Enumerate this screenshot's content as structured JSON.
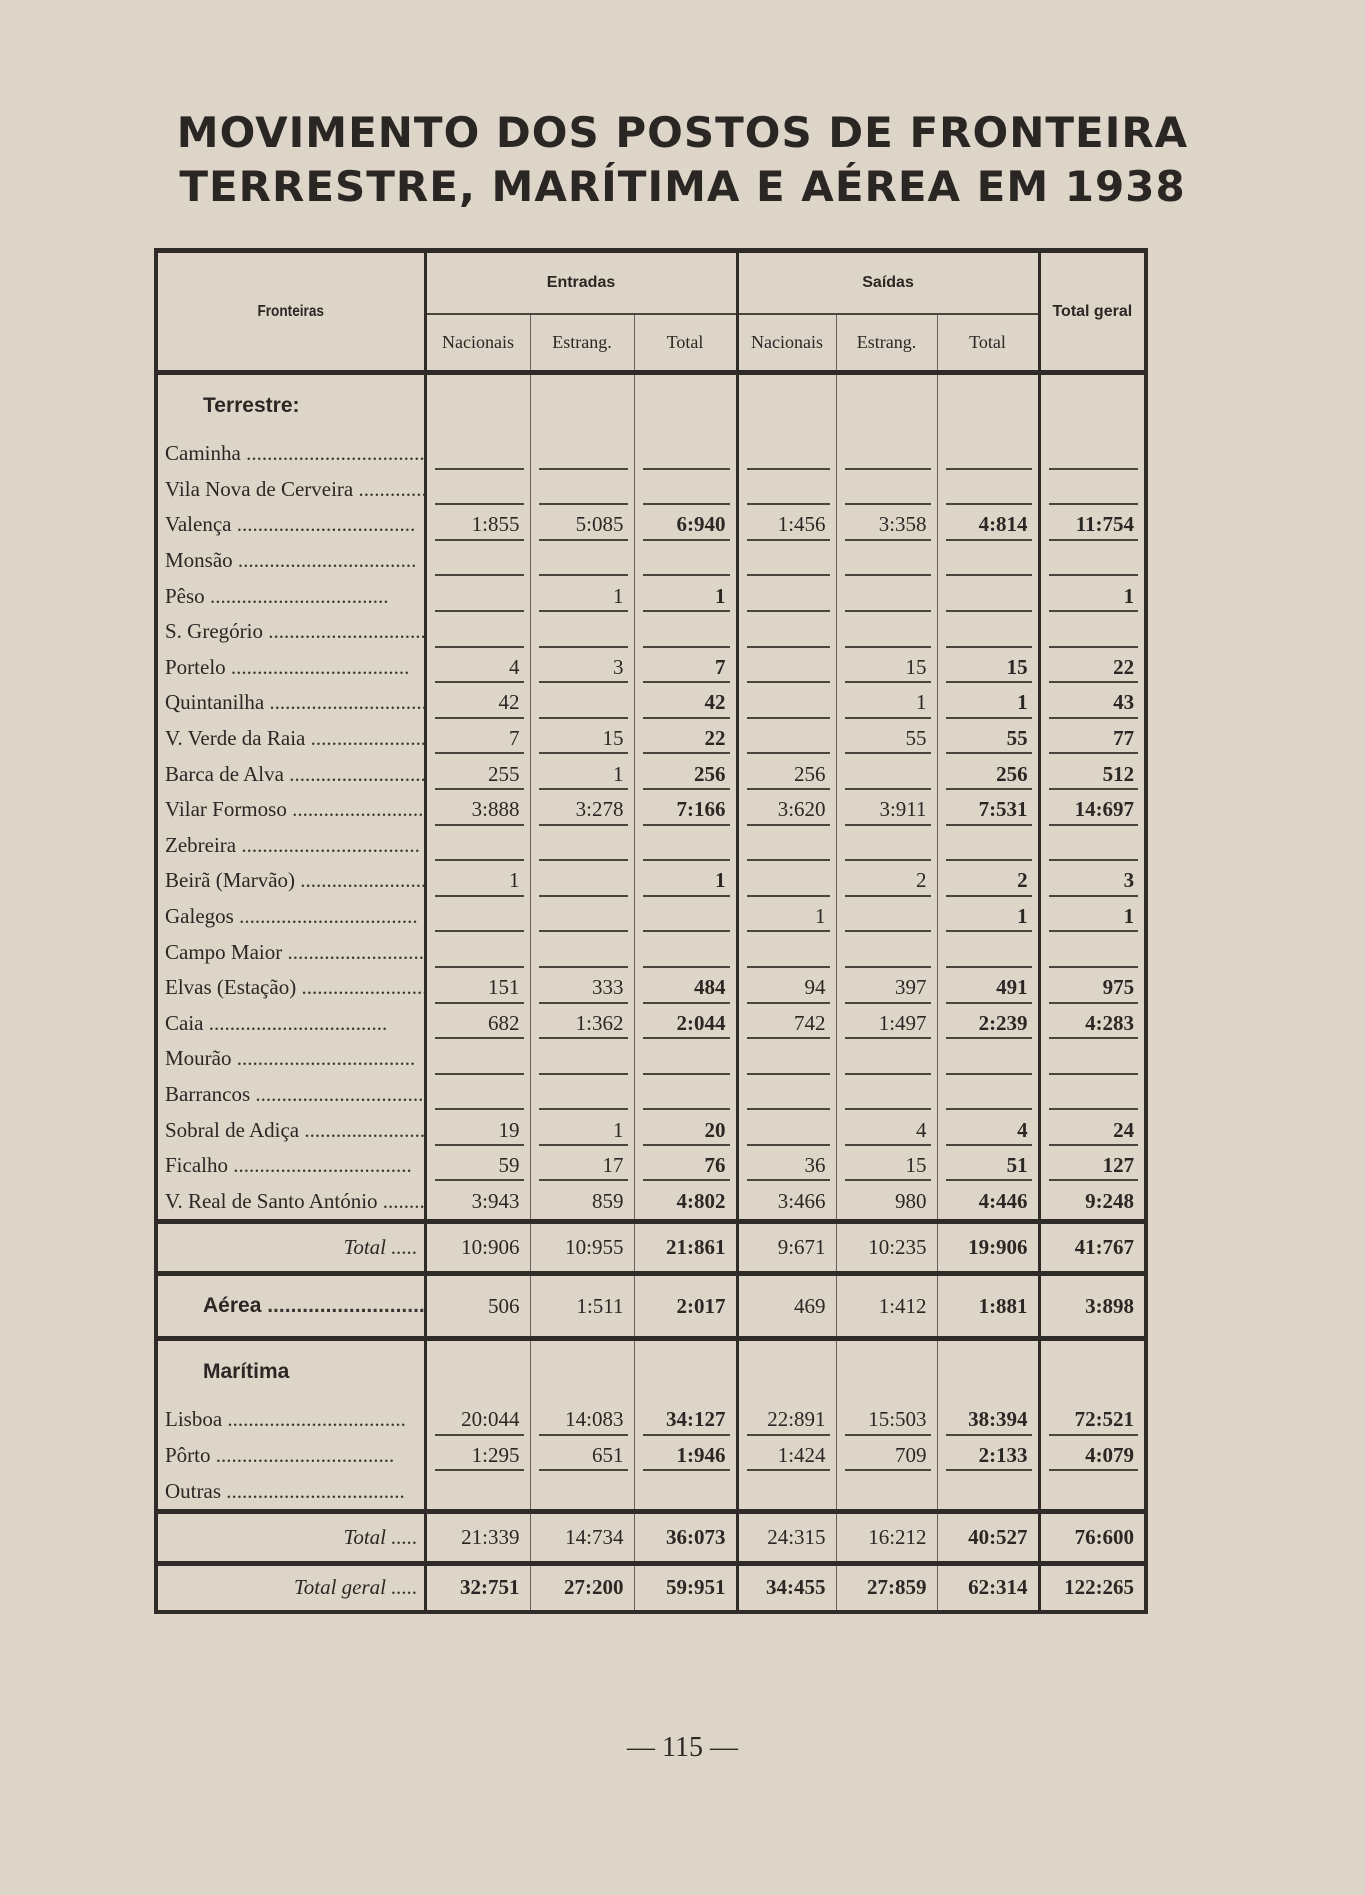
{
  "title_line1": "MOVIMENTO DOS POSTOS DE FRONTEIRA",
  "title_line2": "TERRESTRE, MARÍTIMA E AÉREA EM 1938",
  "headers": {
    "fronteiras": "Fronteiras",
    "entradas": "Entradas",
    "saidas": "Saídas",
    "total_geral": "Total geral",
    "sub": [
      "Nacionais",
      "Estrang.",
      "Total",
      "Nacionais",
      "Estrang.",
      "Total"
    ]
  },
  "rows": [
    {
      "type": "sec",
      "label": "Terrestre:"
    },
    {
      "type": "r",
      "label": "Caminha",
      "values": [
        "",
        "",
        "",
        "",
        "",
        "",
        ""
      ]
    },
    {
      "type": "r",
      "label": "Vila Nova de Cerveira",
      "values": [
        "",
        "",
        "",
        "",
        "",
        "",
        ""
      ]
    },
    {
      "type": "r",
      "label": "Valença",
      "values": [
        "1:855",
        "5:085",
        "6:940",
        "1:456",
        "3:358",
        "4:814",
        "11:754"
      ]
    },
    {
      "type": "r",
      "label": "Monsão",
      "values": [
        "",
        "",
        "",
        "",
        "",
        "",
        ""
      ]
    },
    {
      "type": "r",
      "label": "Pêso",
      "values": [
        "",
        "1",
        "1",
        "",
        "",
        "",
        "1"
      ]
    },
    {
      "type": "r",
      "label": "S. Gregório",
      "values": [
        "",
        "",
        "",
        "",
        "",
        "",
        ""
      ]
    },
    {
      "type": "r",
      "label": "Portelo",
      "values": [
        "4",
        "3",
        "7",
        "",
        "15",
        "15",
        "22"
      ]
    },
    {
      "type": "r",
      "label": "Quintanilha",
      "values": [
        "42",
        "",
        "42",
        "",
        "1",
        "1",
        "43"
      ]
    },
    {
      "type": "r",
      "label": "V. Verde da Raia",
      "values": [
        "7",
        "15",
        "22",
        "",
        "55",
        "55",
        "77"
      ]
    },
    {
      "type": "r",
      "label": "Barca de Alva",
      "values": [
        "255",
        "1",
        "256",
        "256",
        "",
        "256",
        "512"
      ]
    },
    {
      "type": "r",
      "label": "Vilar Formoso",
      "values": [
        "3:888",
        "3:278",
        "7:166",
        "3:620",
        "3:911",
        "7:531",
        "14:697"
      ]
    },
    {
      "type": "r",
      "label": "Zebreira",
      "values": [
        "",
        "",
        "",
        "",
        "",
        "",
        ""
      ]
    },
    {
      "type": "r",
      "label": "Beirã (Marvão)",
      "values": [
        "1",
        "",
        "1",
        "",
        "2",
        "2",
        "3"
      ]
    },
    {
      "type": "r",
      "label": "Galegos",
      "values": [
        "",
        "",
        "",
        "1",
        "",
        "1",
        "1"
      ]
    },
    {
      "type": "r",
      "label": "Campo Maior",
      "values": [
        "",
        "",
        "",
        "",
        "",
        "",
        ""
      ]
    },
    {
      "type": "r",
      "label": "Elvas (Estação)",
      "values": [
        "151",
        "333",
        "484",
        "94",
        "397",
        "491",
        "975"
      ]
    },
    {
      "type": "r",
      "label": "Caia",
      "values": [
        "682",
        "1:362",
        "2:044",
        "742",
        "1:497",
        "2:239",
        "4:283"
      ]
    },
    {
      "type": "r",
      "label": "Mourão",
      "values": [
        "",
        "",
        "",
        "",
        "",
        "",
        ""
      ]
    },
    {
      "type": "r",
      "label": "Barrancos",
      "values": [
        "",
        "",
        "",
        "",
        "",
        "",
        ""
      ]
    },
    {
      "type": "r",
      "label": "Sobral de Adiça",
      "values": [
        "19",
        "1",
        "20",
        "",
        "4",
        "4",
        "24"
      ]
    },
    {
      "type": "r",
      "label": "Ficalho",
      "values": [
        "59",
        "17",
        "76",
        "36",
        "15",
        "51",
        "127"
      ]
    },
    {
      "type": "r",
      "label": "V. Real de Santo António",
      "values": [
        "3:943",
        "859",
        "4:802",
        "3:466",
        "980",
        "4:446",
        "9:248"
      ]
    },
    {
      "type": "tot",
      "label": "Total",
      "values": [
        "10:906",
        "10:955",
        "21:861",
        "9:671",
        "10:235",
        "19:906",
        "41:767"
      ]
    },
    {
      "type": "aer",
      "label": "Aérea",
      "values": [
        "506",
        "1:511",
        "2:017",
        "469",
        "1:412",
        "1:881",
        "3:898"
      ]
    },
    {
      "type": "sec",
      "label": "Marítima"
    },
    {
      "type": "r",
      "label": "Lisboa",
      "values": [
        "20:044",
        "14:083",
        "34:127",
        "22:891",
        "15:503",
        "38:394",
        "72:521"
      ]
    },
    {
      "type": "r",
      "label": "Pôrto",
      "values": [
        "1:295",
        "651",
        "1:946",
        "1:424",
        "709",
        "2:133",
        "4:079"
      ]
    },
    {
      "type": "r",
      "label": "Outras",
      "values": [
        "",
        "",
        "",
        "",
        "",
        "",
        ""
      ]
    },
    {
      "type": "tot",
      "label": "Total",
      "values": [
        "21:339",
        "14:734",
        "36:073",
        "24:315",
        "16:212",
        "40:527",
        "76:600"
      ]
    },
    {
      "type": "gt",
      "label": "Total geral",
      "values": [
        "32:751",
        "27:200",
        "59:951",
        "34:455",
        "27:859",
        "62:314",
        "122:265"
      ]
    }
  ],
  "page_number": "— 115 —"
}
